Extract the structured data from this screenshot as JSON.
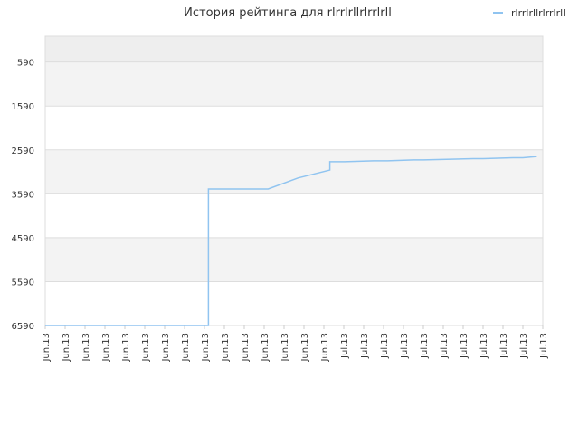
{
  "chart_data": {
    "type": "line",
    "title": "История рейтинга для rlrrlrllrlrrlrll",
    "xlabel": "",
    "ylabel": "",
    "y_inverted": true,
    "ylim": [
      6590,
      0
    ],
    "y_ticks": [
      590,
      1590,
      2590,
      3590,
      4590,
      5590,
      6590
    ],
    "x_tick_labels": [
      "Jun.13",
      "Jun.13",
      "Jun.13",
      "Jun.13",
      "Jun.13",
      "Jun.13",
      "Jun.13",
      "Jun.13",
      "Jun.13",
      "Jun.13",
      "Jun.13",
      "Jun.13",
      "Jun.13",
      "Jun.13",
      "Jun.13",
      "Jul.13",
      "Jul.13",
      "Jul.13",
      "Jul.13",
      "Jul.13",
      "Jul.13",
      "Jul.13",
      "Jul.13",
      "Jul.13",
      "Jul.13",
      "Jul.13"
    ],
    "grid": true,
    "legend_position": "top-right",
    "series": [
      {
        "name": "rlrrlrllrlrrlrll",
        "color": "#90c4f0",
        "x": [
          0,
          8.2,
          8.2,
          11.2,
          12.7,
          14.3,
          14.3,
          15.0,
          16.5,
          17.2,
          18.5,
          19.0,
          21.5,
          22.0,
          23.5,
          24.0,
          24.7
        ],
        "values": [
          6590,
          6590,
          3480,
          3480,
          3230,
          3050,
          2860,
          2860,
          2840,
          2840,
          2820,
          2820,
          2790,
          2790,
          2770,
          2770,
          2740
        ]
      }
    ]
  }
}
